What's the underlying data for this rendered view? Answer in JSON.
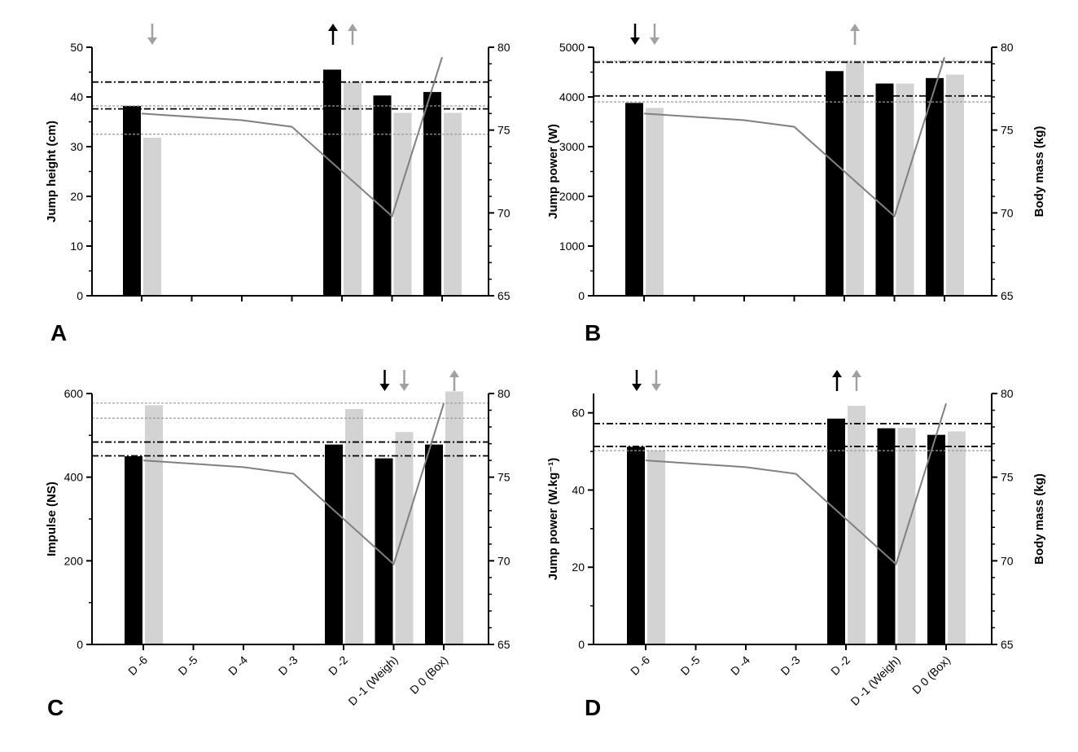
{
  "colors": {
    "black_bar": "#000000",
    "grey_bar": "#d3d3d3",
    "mass_line": "#808080",
    "grey_arrow": "#a0a0a0"
  },
  "days": [
    "D -6",
    "D -5",
    "D -4",
    "D -3",
    "D -2",
    "D -1 (Weigh)",
    "D 0 (Box)"
  ],
  "chart_data": [
    {
      "panel": "A",
      "type": "bar",
      "ylabel": "Jump height (cm)",
      "ylim": [
        0,
        50
      ],
      "yticks": [
        0,
        10,
        20,
        30,
        40,
        50
      ],
      "y2label": "",
      "y2lim": [
        65,
        80
      ],
      "y2ticks": [
        65,
        70,
        75,
        80
      ],
      "show_x_labels": false,
      "series": [
        {
          "name": "black",
          "values": [
            38.2,
            null,
            null,
            null,
            45.5,
            40.3,
            41.0
          ]
        },
        {
          "name": "grey",
          "values": [
            31.8,
            null,
            null,
            null,
            43.0,
            36.8,
            36.8
          ]
        }
      ],
      "body_mass": [
        76.0,
        null,
        75.6,
        75.2,
        null,
        69.8,
        79.4
      ],
      "ref_lines": [
        {
          "y": 43.0,
          "style": "black-dashdot"
        },
        {
          "y": 37.6,
          "style": "black-dashdot"
        },
        {
          "y": 38.2,
          "style": "grey-dotted"
        },
        {
          "y": 32.5,
          "style": "grey-dotted"
        }
      ],
      "arrows": [
        {
          "day": 0,
          "series": "grey",
          "dir": "down"
        },
        {
          "day": 4,
          "series": "black",
          "dir": "up"
        },
        {
          "day": 4,
          "series": "grey",
          "dir": "up"
        }
      ]
    },
    {
      "panel": "B",
      "type": "bar",
      "ylabel": "Jump power (W)",
      "ylim": [
        0,
        5000
      ],
      "yticks": [
        0,
        1000,
        2000,
        3000,
        4000,
        5000
      ],
      "y2label": "Body mass (kg)",
      "y2lim": [
        65,
        80
      ],
      "y2ticks": [
        65,
        70,
        75,
        80
      ],
      "show_x_labels": false,
      "series": [
        {
          "name": "black",
          "values": [
            3880,
            null,
            null,
            null,
            4520,
            4270,
            4380
          ]
        },
        {
          "name": "grey",
          "values": [
            3780,
            null,
            null,
            null,
            4720,
            4270,
            4450
          ]
        }
      ],
      "body_mass": [
        76.0,
        null,
        75.6,
        75.2,
        null,
        69.8,
        79.4
      ],
      "ref_lines": [
        {
          "y": 4700,
          "style": "black-dashdot"
        },
        {
          "y": 4020,
          "style": "black-dashdot"
        },
        {
          "y": 4720,
          "style": "grey-dotted"
        },
        {
          "y": 3900,
          "style": "grey-dotted"
        }
      ],
      "arrows": [
        {
          "day": 0,
          "series": "black",
          "dir": "down"
        },
        {
          "day": 0,
          "series": "grey",
          "dir": "down"
        },
        {
          "day": 4,
          "series": "grey",
          "dir": "up"
        }
      ]
    },
    {
      "panel": "C",
      "type": "bar",
      "ylabel": "Impulse (NS)",
      "ylim": [
        0,
        600
      ],
      "yticks": [
        0,
        200,
        400,
        600
      ],
      "y2label": "",
      "y2lim": [
        65,
        80
      ],
      "y2ticks": [
        65,
        70,
        75,
        80
      ],
      "show_x_labels": true,
      "series": [
        {
          "name": "black",
          "values": [
            450,
            null,
            null,
            null,
            478,
            445,
            478
          ]
        },
        {
          "name": "grey",
          "values": [
            572,
            null,
            null,
            null,
            563,
            508,
            605
          ]
        }
      ],
      "body_mass": [
        76.0,
        null,
        75.6,
        75.2,
        null,
        69.8,
        79.4
      ],
      "ref_lines": [
        {
          "y": 484,
          "style": "black-dashdot"
        },
        {
          "y": 451,
          "style": "black-dashdot"
        },
        {
          "y": 577,
          "style": "grey-dotted"
        },
        {
          "y": 541,
          "style": "grey-dotted"
        }
      ],
      "arrows": [
        {
          "day": 5,
          "series": "black",
          "dir": "down"
        },
        {
          "day": 5,
          "series": "grey",
          "dir": "down"
        },
        {
          "day": 6,
          "series": "grey",
          "dir": "up"
        }
      ]
    },
    {
      "panel": "D",
      "type": "bar",
      "ylabel": "Jump power (W.kg⁻¹)",
      "ylim": [
        0,
        65
      ],
      "yticks": [
        0,
        20,
        40,
        60
      ],
      "y2label": "Body mass (kg)",
      "y2lim": [
        65,
        80
      ],
      "y2ticks": [
        65,
        70,
        75,
        80
      ],
      "show_x_labels": true,
      "series": [
        {
          "name": "black",
          "values": [
            51.2,
            null,
            null,
            null,
            58.5,
            56.0,
            54.3
          ]
        },
        {
          "name": "grey",
          "values": [
            50.2,
            null,
            null,
            null,
            61.8,
            56.1,
            55.2
          ]
        }
      ],
      "body_mass": [
        76.0,
        null,
        75.6,
        75.2,
        null,
        69.8,
        79.4
      ],
      "ref_lines": [
        {
          "y": 57.2,
          "style": "black-dashdot"
        },
        {
          "y": 51.3,
          "style": "black-dashdot"
        },
        {
          "y": 50.2,
          "style": "grey-dotted"
        }
      ],
      "arrows": [
        {
          "day": 0,
          "series": "black",
          "dir": "down"
        },
        {
          "day": 0,
          "series": "grey",
          "dir": "down"
        },
        {
          "day": 4,
          "series": "black",
          "dir": "up"
        },
        {
          "day": 4,
          "series": "grey",
          "dir": "up"
        }
      ]
    }
  ]
}
